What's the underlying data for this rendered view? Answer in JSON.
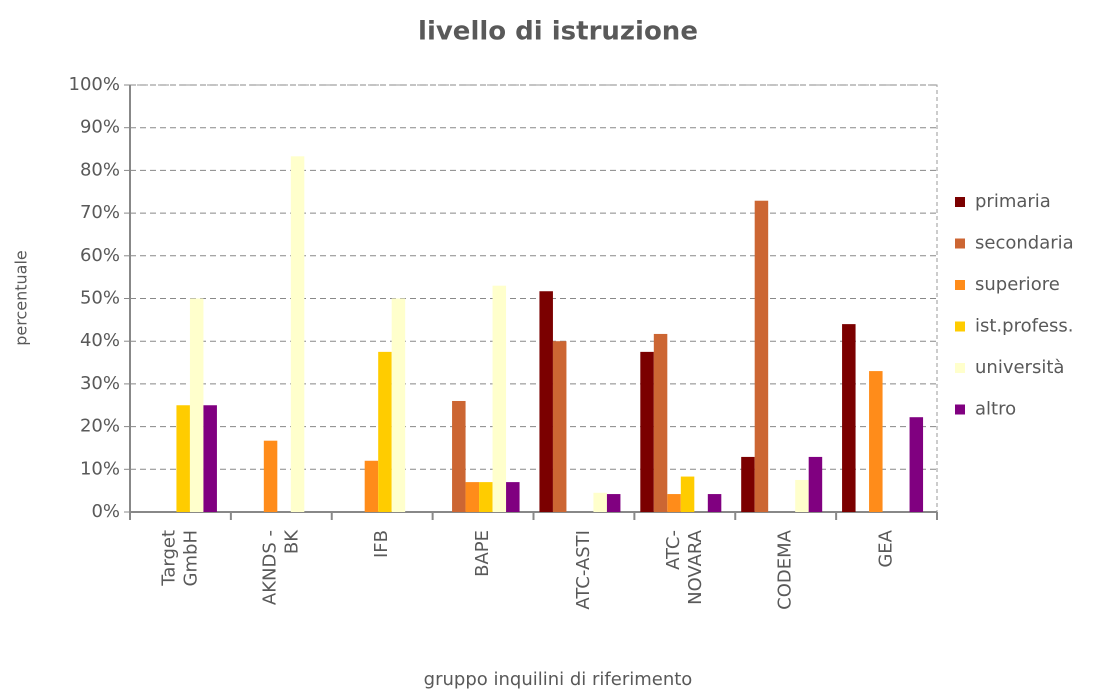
{
  "chart_data": {
    "type": "bar",
    "title": "livello di istruzione",
    "x_label": "gruppo inquilini di riferimento",
    "y_label": "percentuale",
    "categories": [
      "Target\nGmbH",
      "AKNDS -\nBK",
      "IFB",
      "BAPE",
      "ATC-ASTI",
      "ATC-\nNOVARA",
      "CODEMA",
      "GEA"
    ],
    "series": [
      {
        "name": "primaria",
        "color": "#7b0000",
        "values": [
          0,
          0,
          0,
          0,
          51.7,
          37.5,
          12.9,
          44
        ]
      },
      {
        "name": "secondaria",
        "color": "#cc6633",
        "values": [
          0,
          0,
          0,
          26,
          40,
          41.7,
          72.9,
          0
        ]
      },
      {
        "name": "superiore",
        "color": "#ff8c1a",
        "values": [
          0,
          16.7,
          12,
          7,
          0,
          4.2,
          0,
          33
        ]
      },
      {
        "name": "ist.profess.",
        "color": "#ffcc00",
        "values": [
          25,
          0,
          37.5,
          7,
          0,
          8.3,
          0,
          0
        ]
      },
      {
        "name": "università",
        "color": "#ffffcc",
        "values": [
          50,
          83.3,
          50,
          53,
          4.5,
          0,
          7.5,
          0
        ]
      },
      {
        "name": "altro",
        "color": "#800080",
        "values": [
          25,
          0,
          0,
          7,
          4.2,
          4.2,
          12.9,
          22.2
        ]
      }
    ],
    "ylim": [
      0,
      100
    ],
    "yticks": [
      {
        "value": 0,
        "label": "0%"
      },
      {
        "value": 10,
        "label": "10%"
      },
      {
        "value": 20,
        "label": "20%"
      },
      {
        "value": 30,
        "label": "30%"
      },
      {
        "value": 40,
        "label": "40%"
      },
      {
        "value": 50,
        "label": "50%"
      },
      {
        "value": 60,
        "label": "60%"
      },
      {
        "value": 70,
        "label": "70%"
      },
      {
        "value": 80,
        "label": "80%"
      },
      {
        "value": 90,
        "label": "90%"
      },
      {
        "value": 100,
        "label": "100%"
      }
    ],
    "grid": true,
    "legend": "right"
  }
}
